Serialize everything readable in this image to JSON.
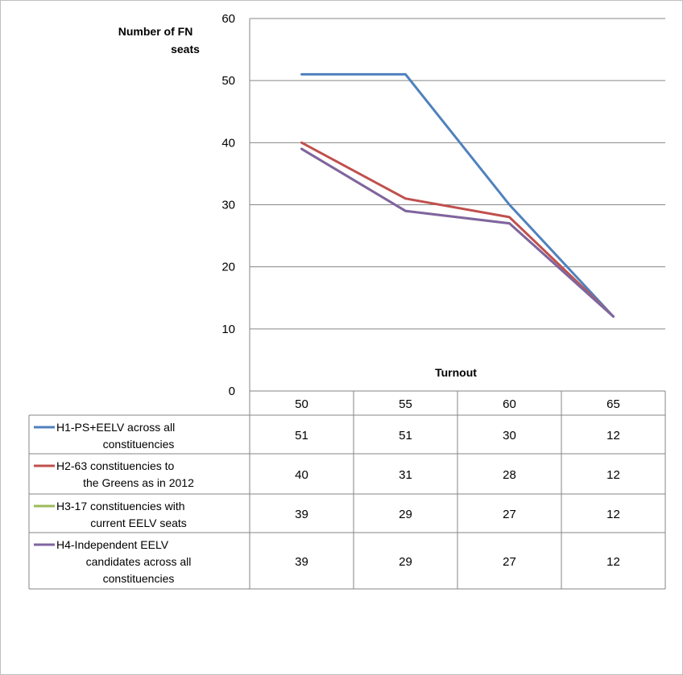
{
  "chart_data": {
    "type": "line",
    "title": "",
    "ylabel": "Number of FN seats",
    "xlabel": "Turnout",
    "ylim": [
      0,
      60
    ],
    "yticks": [
      0,
      10,
      20,
      30,
      40,
      50,
      60
    ],
    "grid": true,
    "categories": [
      "50",
      "55",
      "60",
      "65"
    ],
    "legend_placement": "data table below chart",
    "series": [
      {
        "name": "H1-PS+EELV across all constituencies",
        "legend_lines": [
          "H1-PS+EELV across all",
          "constituencies"
        ],
        "color": "#4f81bd",
        "values": [
          51,
          51,
          30,
          12
        ]
      },
      {
        "name": "H2-63 constituencies to the Greens as in 2012",
        "legend_lines": [
          "H2-63 constituencies to",
          "the Greens as in 2012"
        ],
        "color": "#c0504d",
        "values": [
          40,
          31,
          28,
          12
        ]
      },
      {
        "name": "H3-17 constituencies with current EELV seats",
        "legend_lines": [
          "H3-17 constituencies with",
          "current EELV seats"
        ],
        "color": "#9bbb59",
        "values": [
          39,
          29,
          27,
          12
        ]
      },
      {
        "name": "H4-Independent EELV candidates across all constituencies",
        "legend_lines": [
          "H4-Independent EELV",
          "candidates across all",
          "constituencies"
        ],
        "color": "#8064a2",
        "values": [
          39,
          29,
          27,
          12
        ]
      }
    ]
  }
}
